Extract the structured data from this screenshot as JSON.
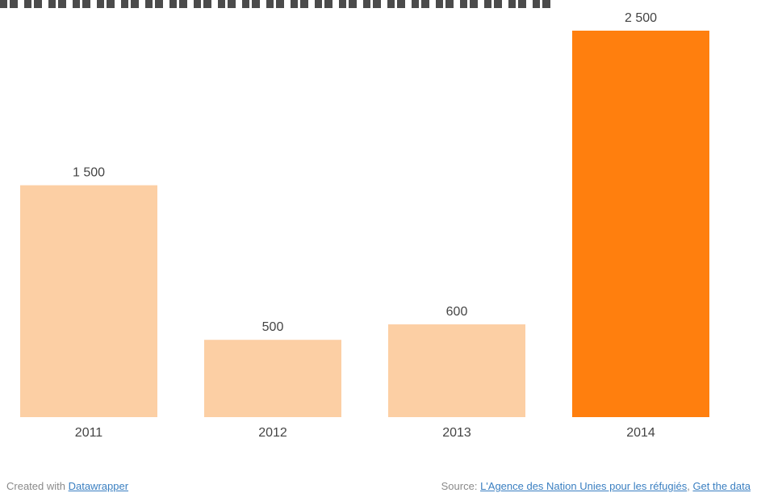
{
  "chart_data": {
    "type": "bar",
    "categories": [
      "2011",
      "2012",
      "2013",
      "2014"
    ],
    "values": [
      1500,
      500,
      600,
      2500
    ],
    "value_labels": [
      "1 500",
      "500",
      "600",
      "2 500"
    ],
    "colors": [
      "#fccfa4",
      "#fccfa4",
      "#fccfa4",
      "#ff7f0e"
    ],
    "ylim": [
      0,
      2500
    ],
    "grid": false,
    "legend": "none"
  },
  "footer": {
    "created_prefix": "Created with ",
    "created_link": "Datawrapper",
    "source_prefix": "Source: ",
    "source_link": "L'Agence des Nation Unies pour les réfugiés",
    "separator": ", ",
    "get_data_link": "Get the data"
  }
}
